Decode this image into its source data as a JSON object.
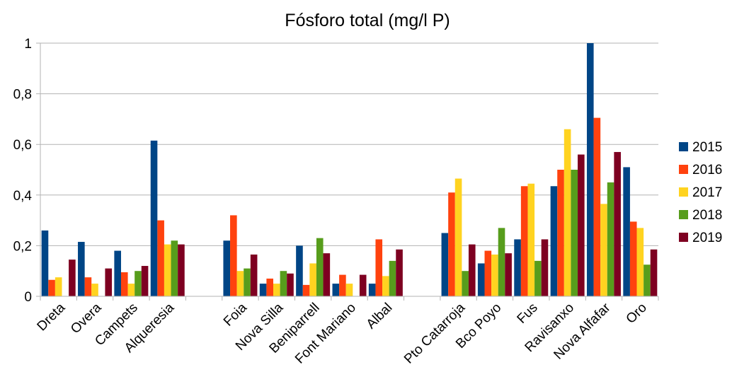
{
  "chart_data": {
    "type": "bar",
    "title": "Fósforo total (mg/l P)",
    "xlabel": "",
    "ylabel": "",
    "ylim": [
      0,
      1
    ],
    "yticks": [
      0,
      0.2,
      0.4,
      0.6,
      0.8,
      1
    ],
    "ytick_labels": [
      "0",
      "0,2",
      "0,4",
      "0,6",
      "0,8",
      "1"
    ],
    "grid": true,
    "legend_position": "right",
    "categories": [
      "Dreta",
      "Overa",
      "Campets",
      "Alqueresia",
      "",
      "Foia",
      "Nova Silla",
      "Beniparrell",
      "Font Mariano",
      "Albal",
      "",
      "Pto Catarroja",
      "Bco Poyo",
      "Fus",
      "Ravisanxo",
      "Nova Alfafar",
      "Oro"
    ],
    "series": [
      {
        "name": "2015",
        "color": "#004586",
        "values": [
          0.26,
          0.215,
          0.18,
          0.615,
          null,
          0.22,
          0.05,
          0.2,
          0.05,
          0.05,
          null,
          0.25,
          0.13,
          0.225,
          0.435,
          1.0,
          0.51
        ]
      },
      {
        "name": "2016",
        "color": "#ff420e",
        "values": [
          0.065,
          0.075,
          0.095,
          0.3,
          null,
          0.32,
          0.07,
          0.045,
          0.085,
          0.225,
          null,
          0.41,
          0.18,
          0.435,
          0.5,
          0.705,
          0.295
        ]
      },
      {
        "name": "2017",
        "color": "#ffd320",
        "values": [
          0.075,
          0.05,
          0.05,
          0.205,
          null,
          0.1,
          0.05,
          0.13,
          0.05,
          0.08,
          null,
          0.465,
          0.165,
          0.445,
          0.66,
          0.365,
          0.27
        ]
      },
      {
        "name": "2018",
        "color": "#579d1c",
        "values": [
          null,
          null,
          0.1,
          0.22,
          null,
          0.11,
          0.1,
          0.23,
          null,
          0.14,
          null,
          0.1,
          0.27,
          0.14,
          0.5,
          0.45,
          0.125
        ]
      },
      {
        "name": "2019",
        "color": "#7e0021",
        "values": [
          0.145,
          0.11,
          0.12,
          0.205,
          null,
          0.165,
          0.09,
          0.17,
          0.085,
          0.185,
          null,
          0.205,
          0.17,
          0.225,
          0.56,
          0.57,
          0.185
        ]
      }
    ]
  }
}
